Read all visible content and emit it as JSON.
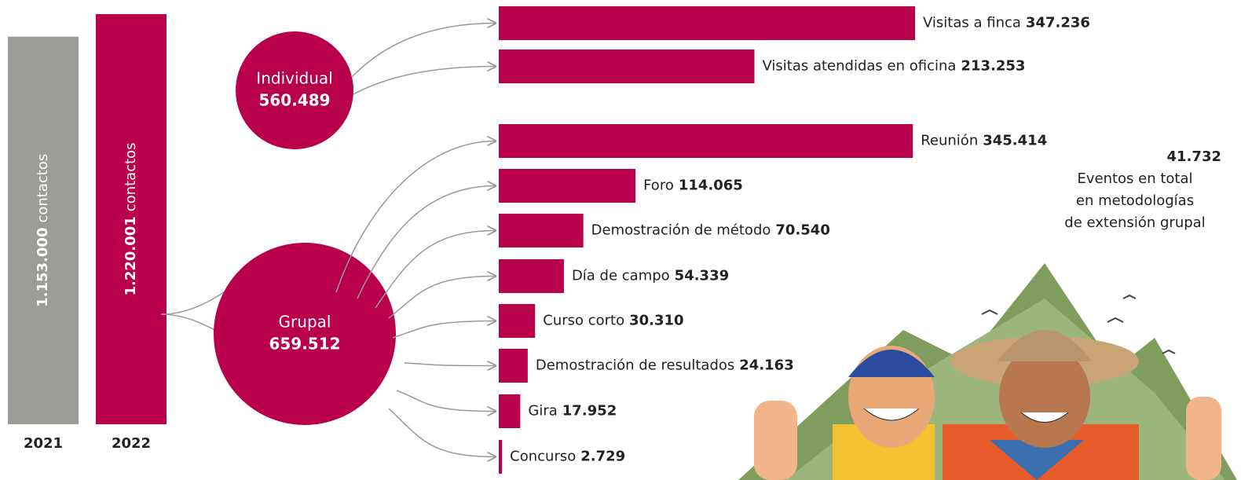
{
  "chart_data": [
    {
      "type": "column",
      "categories": [
        "2021",
        "2022"
      ],
      "values": [
        1153000,
        1220001
      ],
      "value_labels": [
        "1.153.000",
        "1.220.001"
      ],
      "unit_label": "contactos",
      "colors": [
        "#9d9c98",
        "#b8004b"
      ]
    },
    {
      "type": "circle",
      "categories": [
        "Individual",
        "Grupal"
      ],
      "values": [
        560489,
        659512
      ],
      "value_labels": [
        "560.489",
        "659.512"
      ],
      "color": "#b8004b"
    },
    {
      "type": "hbar",
      "categories": [
        "Visitas a finca",
        "Visitas atendidas en oficina",
        "Reunión",
        "Foro",
        "Demostración de método",
        "Día de campo",
        "Curso corto",
        "Demostración de resultados",
        "Gira",
        "Concurso"
      ],
      "values": [
        347236,
        213253,
        345414,
        114065,
        70540,
        54339,
        30310,
        24163,
        17952,
        2729
      ],
      "value_labels": [
        "347.236",
        "213.253",
        "345.414",
        "114.065",
        "70.540",
        "54.339",
        "30.310",
        "24.163",
        "17.952",
        "2.729"
      ],
      "color": "#b8004b",
      "annotation": {
        "value_label": "41.732",
        "lines": [
          "Eventos en total",
          "en metodologías",
          "de extensión grupal"
        ]
      }
    }
  ]
}
